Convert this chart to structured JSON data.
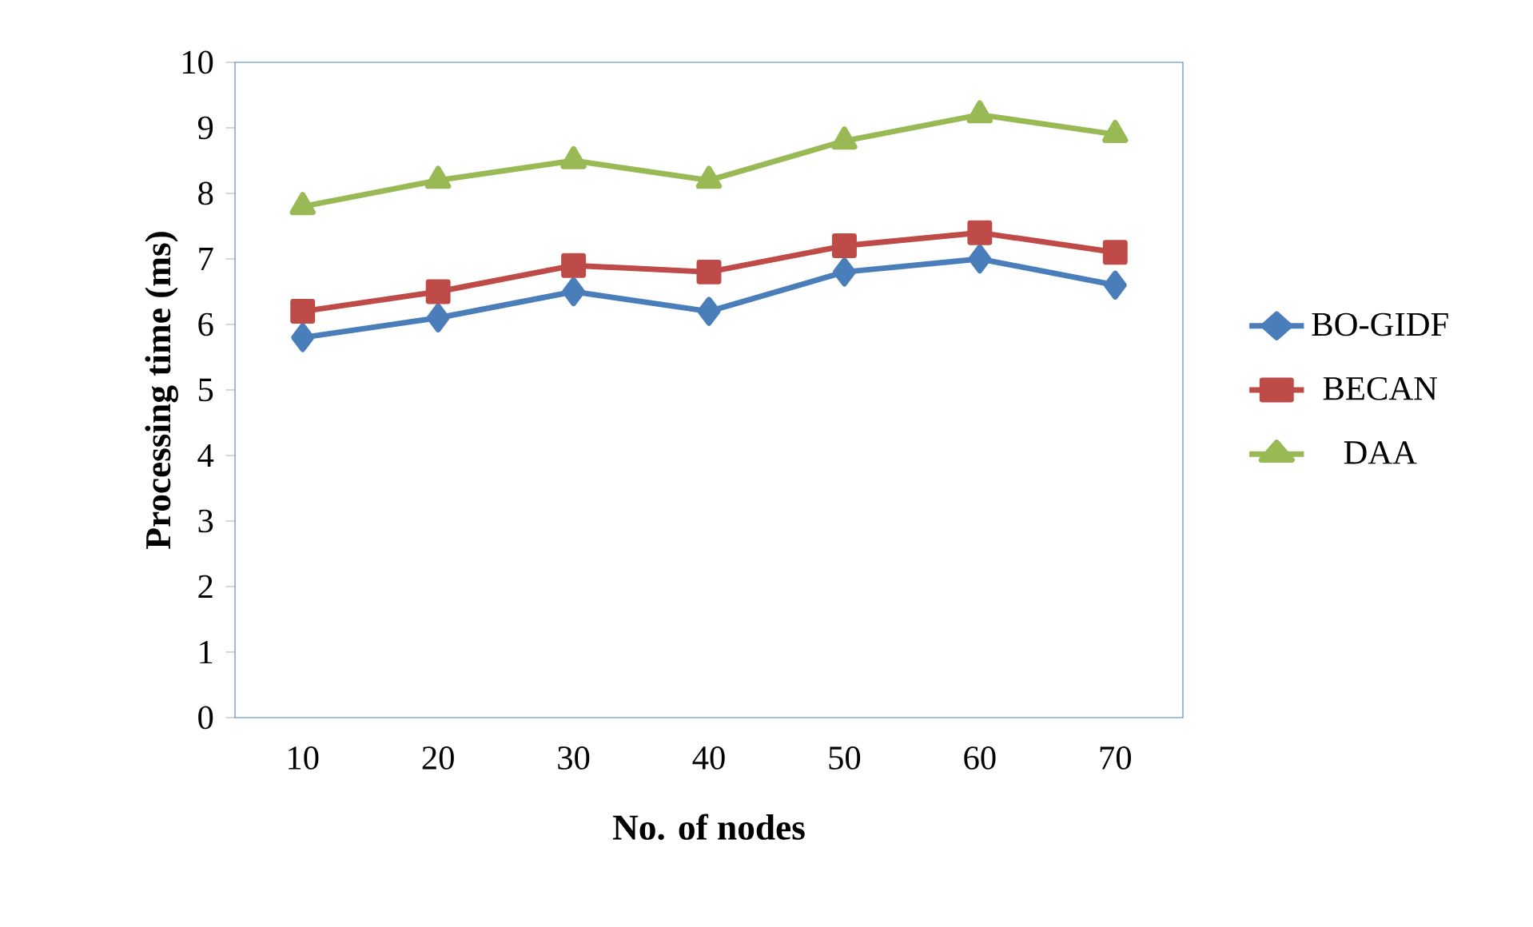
{
  "chart_data": {
    "type": "line",
    "xlabel": "No. of nodes",
    "ylabel": "Processing time (ms)",
    "categories": [
      "10",
      "20",
      "30",
      "40",
      "50",
      "60",
      "70"
    ],
    "ylim": [
      0,
      10
    ],
    "yticks": [
      0,
      1,
      2,
      3,
      4,
      5,
      6,
      7,
      8,
      9,
      10
    ],
    "grid": false,
    "legend": "right",
    "series": [
      {
        "name": "BO-GIDF",
        "color": "#4a7ebb",
        "marker": "diamond",
        "values": [
          5.8,
          6.1,
          6.5,
          6.2,
          6.8,
          7.0,
          6.6
        ]
      },
      {
        "name": "BECAN",
        "color": "#be4b48",
        "marker": "square",
        "values": [
          6.2,
          6.5,
          6.9,
          6.8,
          7.2,
          7.4,
          7.1
        ]
      },
      {
        "name": "DAA",
        "color": "#98b954",
        "marker": "triangle",
        "values": [
          7.8,
          8.2,
          8.5,
          8.2,
          8.8,
          9.2,
          8.9
        ]
      }
    ]
  }
}
